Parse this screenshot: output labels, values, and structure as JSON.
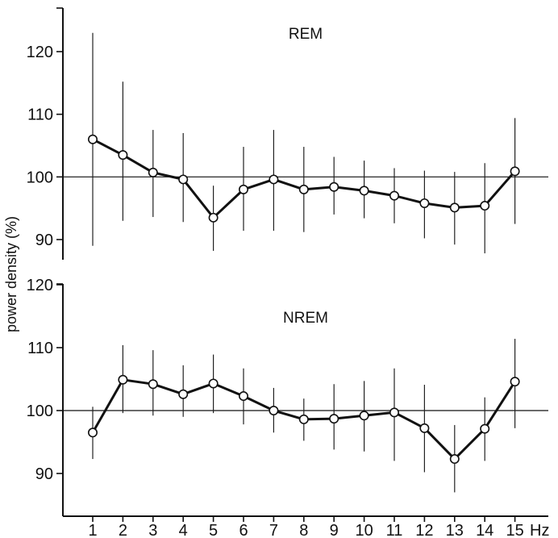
{
  "chart_data": {
    "type": "line",
    "ylabel": "power density (%)",
    "x_unit_label": "Hz",
    "x": [
      1,
      2,
      3,
      4,
      5,
      6,
      7,
      8,
      9,
      10,
      11,
      12,
      13,
      14,
      15
    ],
    "x_tick_labels": [
      "1",
      "2",
      "3",
      "4",
      "5",
      "6",
      "7",
      "8",
      "9",
      "10",
      "11",
      "12",
      "13",
      "14",
      "15"
    ],
    "reference_value": 100,
    "panels": [
      {
        "title": "REM",
        "ylim": [
          87,
          127
        ],
        "y_ticks": [
          90,
          100,
          110,
          120
        ],
        "y_tick_labels": [
          "90",
          "100",
          "110",
          "120"
        ],
        "values": [
          106.0,
          103.5,
          100.7,
          99.6,
          93.5,
          98.0,
          99.6,
          98.0,
          98.4,
          97.8,
          97.0,
          95.8,
          95.1,
          95.4,
          100.9
        ],
        "error_low": [
          89.0,
          93.0,
          93.6,
          92.8,
          88.2,
          91.4,
          91.4,
          91.2,
          94.0,
          93.4,
          92.6,
          90.2,
          89.2,
          87.8,
          92.5
        ],
        "error_high": [
          123.0,
          115.2,
          107.5,
          107.0,
          98.6,
          104.8,
          107.5,
          104.8,
          103.2,
          102.6,
          101.4,
          101.0,
          100.8,
          102.2,
          109.4
        ]
      },
      {
        "title": "NREM",
        "ylim": [
          83,
          122
        ],
        "y_ticks": [
          90,
          100,
          110,
          120
        ],
        "y_tick_labels": [
          "90",
          "100",
          "110",
          "120"
        ],
        "values": [
          96.5,
          104.9,
          104.2,
          102.6,
          104.3,
          102.3,
          100.0,
          98.6,
          98.7,
          99.2,
          99.7,
          97.2,
          92.3,
          97.1,
          104.6
        ],
        "error_low": [
          92.3,
          99.6,
          99.2,
          99.0,
          99.6,
          97.8,
          96.5,
          95.2,
          93.8,
          93.5,
          92.0,
          90.2,
          87.0,
          92.0,
          97.2
        ],
        "error_high": [
          100.6,
          110.4,
          109.6,
          107.2,
          108.9,
          106.7,
          103.6,
          101.9,
          104.2,
          104.7,
          106.7,
          104.1,
          97.7,
          102.1,
          111.4
        ]
      }
    ]
  }
}
